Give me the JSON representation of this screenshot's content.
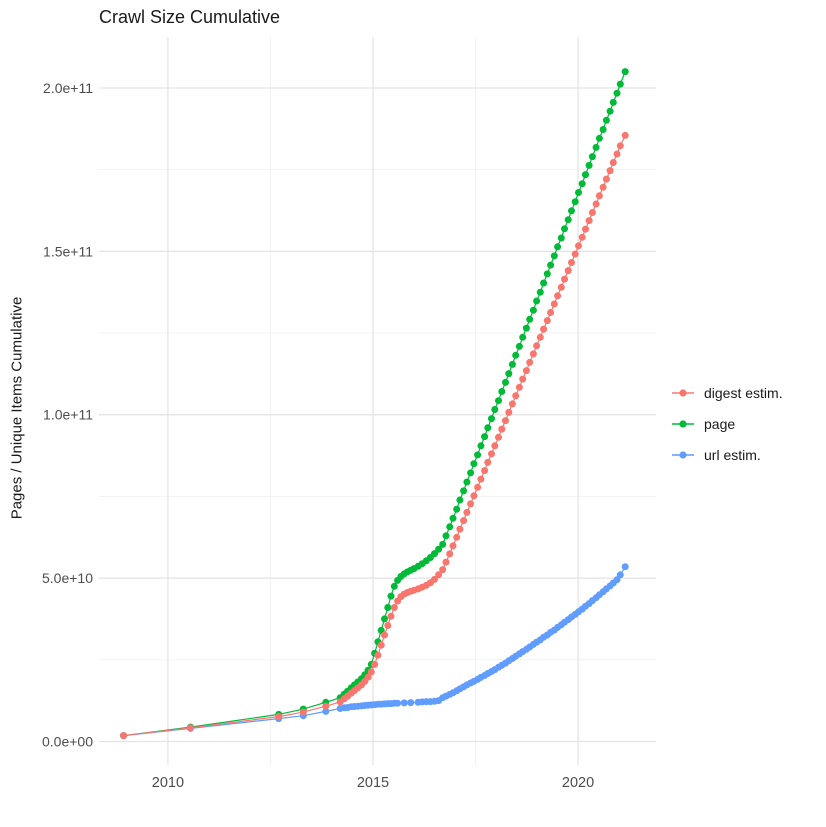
{
  "title": "Crawl Size Cumulative",
  "axes": {
    "y_label": "Pages / Unique Items Cumulative",
    "x_tick_labels": [
      "2010",
      "2015",
      "2020"
    ],
    "y_tick_labels": [
      "0.0e+00",
      "5.0e+10",
      "1.0e+11",
      "1.5e+11",
      "2.0e+11"
    ]
  },
  "legend": {
    "entries": [
      {
        "label": "digest estim.",
        "color": "#F8766D"
      },
      {
        "label": "page",
        "color": "#00BA38"
      },
      {
        "label": "url estim.",
        "color": "#619CFF"
      }
    ]
  },
  "colors": {
    "digest": "#F8766D",
    "page": "#00BA38",
    "url": "#619CFF",
    "grid_major": "#e3e3e3",
    "grid_minor": "#efefef",
    "axis_text": "#4d4d4d",
    "title_text": "#1a1a1a"
  },
  "chart_data": {
    "type": "line",
    "title": "Crawl Size Cumulative",
    "xlabel": "",
    "ylabel": "Pages / Unique Items Cumulative",
    "value_unit": "billions of pages (1e9)",
    "xlim": [
      2008.32,
      2021.9
    ],
    "ylim_billions": [
      -7.2,
      215.6
    ],
    "x_tick_values": [
      2010,
      2015,
      2020
    ],
    "x_tick_labels": [
      "2010",
      "2015",
      "2020"
    ],
    "x_minor_values": [
      2012.5,
      2017.5
    ],
    "y_tick_values_billions": [
      0,
      50,
      100,
      150,
      200
    ],
    "y_tick_labels": [
      "0.0e+00",
      "5.0e+10",
      "1.0e+11",
      "1.5e+11",
      "2.0e+11"
    ],
    "y_minor_values_billions": [
      25,
      75,
      125,
      175
    ],
    "grid": true,
    "legend_position": "right",
    "marker_radius": 3.5,
    "series": [
      {
        "name": "page",
        "color": "#00BA38",
        "points": [
          [
            2008.92,
            1.8
          ],
          [
            2010.55,
            4.4
          ],
          [
            2012.7,
            8.3
          ],
          [
            2013.3,
            9.9
          ],
          [
            2013.85,
            12.0
          ],
          [
            2014.2,
            13.4
          ],
          [
            2014.3,
            14.5
          ],
          [
            2014.38,
            15.4
          ],
          [
            2014.47,
            16.4
          ],
          [
            2014.55,
            17.3
          ],
          [
            2014.63,
            18.2
          ],
          [
            2014.72,
            19.2
          ],
          [
            2014.8,
            20.4
          ],
          [
            2014.88,
            21.8
          ],
          [
            2014.96,
            23.6
          ],
          [
            2015.04,
            27.0
          ],
          [
            2015.12,
            30.5
          ],
          [
            2015.2,
            34.0
          ],
          [
            2015.28,
            37.5
          ],
          [
            2015.36,
            41.0
          ],
          [
            2015.44,
            44.5
          ],
          [
            2015.52,
            47.5
          ],
          [
            2015.6,
            49.3
          ],
          [
            2015.68,
            50.5
          ],
          [
            2015.76,
            51.3
          ],
          [
            2015.84,
            51.9
          ],
          [
            2015.92,
            52.4
          ],
          [
            2016.0,
            52.9
          ],
          [
            2016.1,
            53.6
          ],
          [
            2016.2,
            54.4
          ],
          [
            2016.3,
            55.3
          ],
          [
            2016.4,
            56.3
          ],
          [
            2016.5,
            57.5
          ],
          [
            2016.6,
            58.8
          ],
          [
            2016.7,
            60.3
          ],
          [
            2016.78,
            62.9
          ],
          [
            2016.87,
            65.7
          ],
          [
            2016.95,
            68.3
          ],
          [
            2017.04,
            71.1
          ],
          [
            2017.12,
            73.9
          ],
          [
            2017.21,
            76.7
          ],
          [
            2017.29,
            79.4
          ],
          [
            2017.38,
            82.2
          ],
          [
            2017.46,
            85.0
          ],
          [
            2017.55,
            87.7
          ],
          [
            2017.63,
            90.5
          ],
          [
            2017.72,
            93.3
          ],
          [
            2017.8,
            96.0
          ],
          [
            2017.89,
            98.8
          ],
          [
            2017.97,
            101.6
          ],
          [
            2018.06,
            104.3
          ],
          [
            2018.14,
            107.1
          ],
          [
            2018.23,
            109.9
          ],
          [
            2018.31,
            112.6
          ],
          [
            2018.4,
            115.4
          ],
          [
            2018.48,
            118.2
          ],
          [
            2018.57,
            120.9
          ],
          [
            2018.65,
            123.7
          ],
          [
            2018.74,
            126.5
          ],
          [
            2018.82,
            129.2
          ],
          [
            2018.91,
            132.0
          ],
          [
            2018.99,
            134.8
          ],
          [
            2019.08,
            137.5
          ],
          [
            2019.16,
            140.3
          ],
          [
            2019.25,
            143.1
          ],
          [
            2019.33,
            145.8
          ],
          [
            2019.42,
            148.6
          ],
          [
            2019.5,
            151.4
          ],
          [
            2019.59,
            154.1
          ],
          [
            2019.67,
            156.9
          ],
          [
            2019.76,
            159.7
          ],
          [
            2019.84,
            162.4
          ],
          [
            2019.93,
            165.2
          ],
          [
            2020.01,
            168.0
          ],
          [
            2020.1,
            170.7
          ],
          [
            2020.18,
            173.5
          ],
          [
            2020.27,
            176.3
          ],
          [
            2020.35,
            179.0
          ],
          [
            2020.44,
            181.8
          ],
          [
            2020.52,
            184.6
          ],
          [
            2020.61,
            187.3
          ],
          [
            2020.69,
            190.1
          ],
          [
            2020.78,
            192.9
          ],
          [
            2020.86,
            195.6
          ],
          [
            2020.95,
            198.4
          ],
          [
            2021.03,
            201.2
          ],
          [
            2021.15,
            205.0
          ]
        ]
      },
      {
        "name": "url estim.",
        "color": "#619CFF",
        "points": [
          [
            2008.92,
            1.8
          ],
          [
            2010.55,
            4.0
          ],
          [
            2012.7,
            7.0
          ],
          [
            2013.3,
            7.9
          ],
          [
            2013.85,
            9.2
          ],
          [
            2014.2,
            10.1
          ],
          [
            2014.3,
            10.3
          ],
          [
            2014.38,
            10.4
          ],
          [
            2014.47,
            10.6
          ],
          [
            2014.55,
            10.7
          ],
          [
            2014.63,
            10.8
          ],
          [
            2014.72,
            10.9
          ],
          [
            2014.8,
            11.0
          ],
          [
            2014.88,
            11.1
          ],
          [
            2014.96,
            11.2
          ],
          [
            2015.04,
            11.3
          ],
          [
            2015.12,
            11.4
          ],
          [
            2015.2,
            11.4
          ],
          [
            2015.28,
            11.5
          ],
          [
            2015.36,
            11.6
          ],
          [
            2015.44,
            11.6
          ],
          [
            2015.52,
            11.7
          ],
          [
            2015.6,
            11.7
          ],
          [
            2015.76,
            11.8
          ],
          [
            2015.92,
            11.9
          ],
          [
            2016.1,
            12.0
          ],
          [
            2016.2,
            12.1
          ],
          [
            2016.3,
            12.2
          ],
          [
            2016.4,
            12.2
          ],
          [
            2016.5,
            12.3
          ],
          [
            2016.6,
            12.5
          ],
          [
            2016.7,
            13.4
          ],
          [
            2016.78,
            13.9
          ],
          [
            2016.87,
            14.4
          ],
          [
            2016.95,
            14.9
          ],
          [
            2017.04,
            15.5
          ],
          [
            2017.12,
            16.1
          ],
          [
            2017.21,
            16.7
          ],
          [
            2017.29,
            17.3
          ],
          [
            2017.38,
            17.9
          ],
          [
            2017.46,
            18.4
          ],
          [
            2017.55,
            19.0
          ],
          [
            2017.63,
            19.6
          ],
          [
            2017.72,
            20.2
          ],
          [
            2017.8,
            20.8
          ],
          [
            2017.89,
            21.4
          ],
          [
            2017.97,
            22.0
          ],
          [
            2018.06,
            22.7
          ],
          [
            2018.14,
            23.3
          ],
          [
            2018.23,
            24.0
          ],
          [
            2018.31,
            24.7
          ],
          [
            2018.4,
            25.4
          ],
          [
            2018.48,
            26.1
          ],
          [
            2018.57,
            26.8
          ],
          [
            2018.65,
            27.5
          ],
          [
            2018.74,
            28.2
          ],
          [
            2018.82,
            28.9
          ],
          [
            2018.91,
            29.7
          ],
          [
            2018.99,
            30.4
          ],
          [
            2019.08,
            31.1
          ],
          [
            2019.16,
            31.9
          ],
          [
            2019.25,
            32.6
          ],
          [
            2019.33,
            33.4
          ],
          [
            2019.42,
            34.1
          ],
          [
            2019.5,
            34.9
          ],
          [
            2019.59,
            35.7
          ],
          [
            2019.67,
            36.5
          ],
          [
            2019.76,
            37.3
          ],
          [
            2019.84,
            38.1
          ],
          [
            2019.93,
            38.9
          ],
          [
            2020.01,
            39.7
          ],
          [
            2020.1,
            40.5
          ],
          [
            2020.18,
            41.4
          ],
          [
            2020.27,
            42.2
          ],
          [
            2020.35,
            43.1
          ],
          [
            2020.44,
            44.0
          ],
          [
            2020.52,
            44.9
          ],
          [
            2020.61,
            45.8
          ],
          [
            2020.69,
            46.7
          ],
          [
            2020.78,
            47.6
          ],
          [
            2020.86,
            48.5
          ],
          [
            2020.95,
            49.5
          ],
          [
            2021.03,
            51.0
          ],
          [
            2021.15,
            53.5
          ]
        ]
      },
      {
        "name": "digest estim.",
        "color": "#F8766D",
        "points": [
          [
            2008.92,
            1.8
          ],
          [
            2010.55,
            4.2
          ],
          [
            2012.7,
            7.6
          ],
          [
            2013.3,
            9.0
          ],
          [
            2013.85,
            10.8
          ],
          [
            2014.2,
            12.1
          ],
          [
            2014.3,
            13.1
          ],
          [
            2014.38,
            13.9
          ],
          [
            2014.47,
            14.8
          ],
          [
            2014.55,
            15.6
          ],
          [
            2014.63,
            16.4
          ],
          [
            2014.72,
            17.3
          ],
          [
            2014.8,
            18.4
          ],
          [
            2014.88,
            19.7
          ],
          [
            2014.96,
            21.3
          ],
          [
            2015.04,
            23.6
          ],
          [
            2015.12,
            26.4
          ],
          [
            2015.2,
            29.5
          ],
          [
            2015.28,
            32.6
          ],
          [
            2015.36,
            35.5
          ],
          [
            2015.44,
            38.3
          ],
          [
            2015.52,
            41.0
          ],
          [
            2015.6,
            43.0
          ],
          [
            2015.68,
            44.3
          ],
          [
            2015.76,
            45.1
          ],
          [
            2015.84,
            45.6
          ],
          [
            2015.92,
            46.0
          ],
          [
            2016.0,
            46.3
          ],
          [
            2016.1,
            46.7
          ],
          [
            2016.2,
            47.2
          ],
          [
            2016.3,
            47.8
          ],
          [
            2016.4,
            48.6
          ],
          [
            2016.5,
            49.6
          ],
          [
            2016.6,
            51.0
          ],
          [
            2016.7,
            52.6
          ],
          [
            2016.78,
            54.9
          ],
          [
            2016.87,
            57.4
          ],
          [
            2016.95,
            59.9
          ],
          [
            2017.04,
            62.5
          ],
          [
            2017.12,
            65.0
          ],
          [
            2017.21,
            67.6
          ],
          [
            2017.29,
            70.1
          ],
          [
            2017.38,
            72.7
          ],
          [
            2017.46,
            75.2
          ],
          [
            2017.55,
            77.8
          ],
          [
            2017.63,
            80.3
          ],
          [
            2017.72,
            82.9
          ],
          [
            2017.8,
            85.4
          ],
          [
            2017.89,
            88.0
          ],
          [
            2017.97,
            90.5
          ],
          [
            2018.06,
            93.1
          ],
          [
            2018.14,
            95.6
          ],
          [
            2018.23,
            98.2
          ],
          [
            2018.31,
            100.7
          ],
          [
            2018.4,
            103.3
          ],
          [
            2018.48,
            105.8
          ],
          [
            2018.57,
            108.4
          ],
          [
            2018.65,
            110.9
          ],
          [
            2018.74,
            113.5
          ],
          [
            2018.82,
            116.0
          ],
          [
            2018.91,
            118.6
          ],
          [
            2018.99,
            121.1
          ],
          [
            2019.08,
            123.7
          ],
          [
            2019.16,
            126.2
          ],
          [
            2019.25,
            128.8
          ],
          [
            2019.33,
            131.3
          ],
          [
            2019.42,
            133.9
          ],
          [
            2019.5,
            136.4
          ],
          [
            2019.59,
            139.0
          ],
          [
            2019.67,
            141.5
          ],
          [
            2019.76,
            144.1
          ],
          [
            2019.84,
            146.6
          ],
          [
            2019.93,
            149.2
          ],
          [
            2020.01,
            151.7
          ],
          [
            2020.1,
            154.3
          ],
          [
            2020.18,
            156.8
          ],
          [
            2020.27,
            159.4
          ],
          [
            2020.35,
            161.9
          ],
          [
            2020.44,
            164.5
          ],
          [
            2020.52,
            167.0
          ],
          [
            2020.61,
            169.6
          ],
          [
            2020.69,
            172.1
          ],
          [
            2020.78,
            174.7
          ],
          [
            2020.86,
            177.2
          ],
          [
            2020.95,
            179.8
          ],
          [
            2021.03,
            182.3
          ],
          [
            2021.15,
            185.5
          ]
        ]
      }
    ]
  }
}
